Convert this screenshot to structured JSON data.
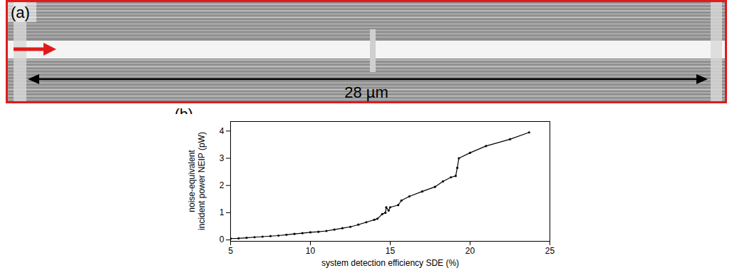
{
  "panel_a": {
    "label": "(a)",
    "scale_bar": "28 µm"
  },
  "chart_data": {
    "type": "line",
    "panel_label": "(b)",
    "xlabel": "system detection efficiency SDE (%)",
    "ylabel": "noise-equivalent\nincident power NEIP (pW)",
    "x": [
      5.0,
      5.5,
      6.0,
      6.5,
      7.0,
      7.5,
      8.0,
      8.5,
      9.0,
      9.5,
      10.0,
      10.5,
      11.0,
      11.5,
      12.0,
      12.5,
      13.0,
      13.5,
      14.0,
      14.2,
      14.5,
      14.7,
      14.75,
      14.9,
      15.0,
      15.5,
      15.7,
      16.2,
      17.0,
      17.8,
      18.3,
      18.8,
      19.1,
      19.2,
      19.3,
      20.0,
      21.0,
      22.5,
      23.7
    ],
    "values": [
      0.05,
      0.06,
      0.08,
      0.1,
      0.12,
      0.14,
      0.16,
      0.19,
      0.22,
      0.25,
      0.28,
      0.3,
      0.33,
      0.38,
      0.43,
      0.48,
      0.56,
      0.65,
      0.74,
      0.78,
      0.95,
      1.0,
      1.2,
      1.08,
      1.2,
      1.28,
      1.45,
      1.6,
      1.78,
      1.95,
      2.15,
      2.3,
      2.35,
      2.65,
      3.0,
      3.2,
      3.45,
      3.7,
      3.95
    ],
    "color": "#000000",
    "marker": "circle",
    "grid": false,
    "xlim": [
      5,
      25
    ],
    "xticks": [
      5,
      10,
      15,
      20,
      25
    ],
    "ylim": [
      -0.05,
      4.35
    ],
    "yticks": [
      0,
      1,
      2,
      3,
      4
    ]
  }
}
